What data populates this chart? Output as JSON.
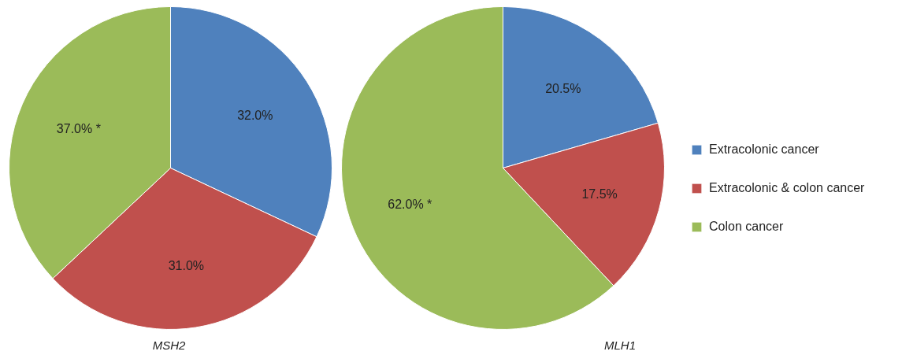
{
  "chart_data": [
    {
      "type": "pie",
      "title": "MSH2",
      "categories": [
        "Extracolonic cancer",
        "Extracolonic & colon cancer",
        "Colon cancer"
      ],
      "values": [
        32.0,
        31.0,
        37.0
      ],
      "colors": [
        "#4f81bd",
        "#c0504d",
        "#9bbb59"
      ],
      "value_labels": [
        "32.0%",
        "31.0%",
        "37.0% *"
      ],
      "legend": "right"
    },
    {
      "type": "pie",
      "title": "MLH1",
      "categories": [
        null,
        null,
        null
      ],
      "values": [
        20.5,
        17.5,
        62.0
      ],
      "colors": [
        "#4f81bd",
        "#c0504d",
        "#9bbb59"
      ],
      "value_labels": [
        "20.5%",
        "17.5%",
        "62.0% *"
      ]
    }
  ]
}
